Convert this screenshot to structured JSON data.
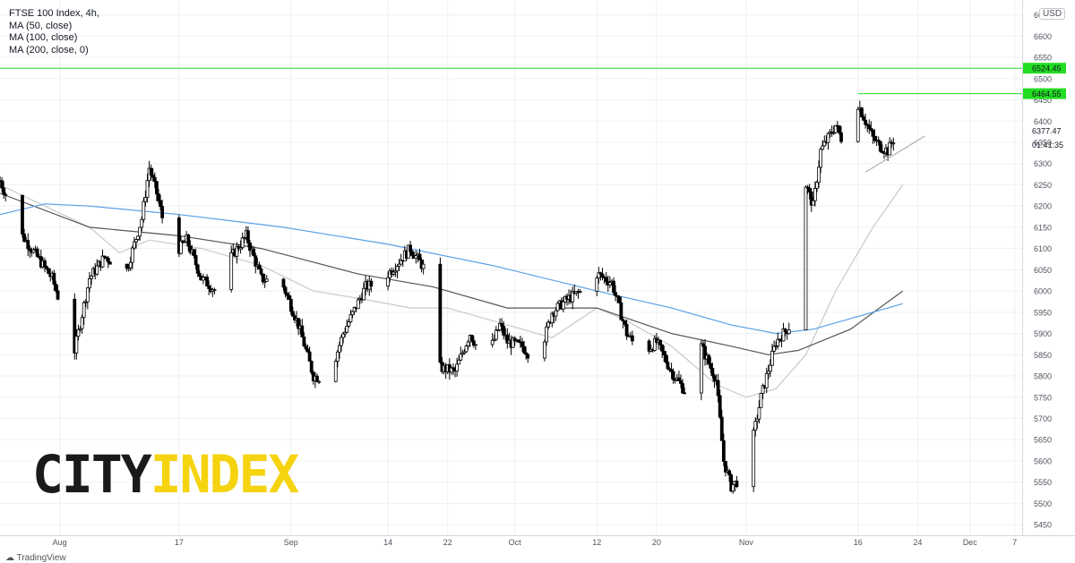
{
  "legend": {
    "title": "FTSE 100 Index, 4h,",
    "ma50": "MA (50, close)",
    "ma100": "MA (100, close)",
    "ma200": "MA (200, close, 0)"
  },
  "currency": "USD",
  "logo": {
    "part1": "CITY",
    "part2": "INDEX"
  },
  "watermark": "TradingView",
  "colors": {
    "up": "#ffffff",
    "down": "#000000",
    "candle_border": "#000000",
    "ma50": "#c9c9c9",
    "ma100": "#555555",
    "ma200": "#5aa0e6",
    "level": "#22dd22",
    "trend": "#b0b0b0",
    "logo_city": "#1a1a1a",
    "logo_index": "#f5d30f"
  },
  "chart_data": {
    "type": "candlestick",
    "title": "FTSE 100 Index, 4h,",
    "ylim": [
      5425,
      6685
    ],
    "xlim": [
      "2020-07-24",
      "2020-12-08"
    ],
    "y_ticks": [
      5450,
      5500,
      5550,
      5600,
      5650,
      5700,
      5750,
      5800,
      5850,
      5900,
      5950,
      6000,
      6050,
      6100,
      6150,
      6200,
      6250,
      6300,
      6350,
      6400,
      6450,
      6500,
      6550,
      6600,
      6650
    ],
    "x_ticks": [
      {
        "label": "Aug",
        "date": "2020-08-01"
      },
      {
        "label": "17",
        "date": "2020-08-17"
      },
      {
        "label": "Sep",
        "date": "2020-09-01"
      },
      {
        "label": "14",
        "date": "2020-09-14"
      },
      {
        "label": "22",
        "date": "2020-09-22"
      },
      {
        "label": "Oct",
        "date": "2020-10-01"
      },
      {
        "label": "12",
        "date": "2020-10-12"
      },
      {
        "label": "20",
        "date": "2020-10-20"
      },
      {
        "label": "Nov",
        "date": "2020-11-01"
      },
      {
        "label": "16",
        "date": "2020-11-16"
      },
      {
        "label": "24",
        "date": "2020-11-24"
      },
      {
        "label": "Dec",
        "date": "2020-12-01"
      },
      {
        "label": "7",
        "date": "2020-12-07"
      }
    ],
    "price_labels": [
      {
        "text": "6524.45",
        "value": 6524.45,
        "style": "level"
      },
      {
        "text": "6464.55",
        "value": 6464.55,
        "style": "level"
      },
      {
        "text": "6377.47",
        "value": 6377.47,
        "style": "plain"
      },
      {
        "text": "01:41:35",
        "value": 6345,
        "style": "plain"
      }
    ],
    "levels": [
      {
        "value": 6524.45,
        "from": "2020-07-24"
      },
      {
        "value": 6464.55,
        "from": "2020-11-16"
      }
    ],
    "trendline": {
      "from": [
        "2020-11-17",
        6280
      ],
      "to": [
        "2020-11-25",
        6365
      ]
    },
    "price_path": [
      [
        "2020-07-24",
        6260
      ],
      [
        "2020-07-27",
        6130
      ],
      [
        "2020-07-31",
        6030
      ],
      [
        "2020-08-03",
        5860
      ],
      [
        "2020-08-05",
        6030
      ],
      [
        "2020-08-07",
        6080
      ],
      [
        "2020-08-10",
        6050
      ],
      [
        "2020-08-12",
        6170
      ],
      [
        "2020-08-13",
        6290
      ],
      [
        "2020-08-14",
        6230
      ],
      [
        "2020-08-16",
        6080
      ],
      [
        "2020-08-18",
        6120
      ],
      [
        "2020-08-20",
        6030
      ],
      [
        "2020-08-22",
        6000
      ],
      [
        "2020-08-24",
        6080
      ],
      [
        "2020-08-26",
        6130
      ],
      [
        "2020-08-28",
        6030
      ],
      [
        "2020-08-31",
        6010
      ],
      [
        "2020-09-02",
        5920
      ],
      [
        "2020-09-04",
        5800
      ],
      [
        "2020-09-06",
        5790
      ],
      [
        "2020-09-08",
        5900
      ],
      [
        "2020-09-11",
        6010
      ],
      [
        "2020-09-13",
        6020
      ],
      [
        "2020-09-15",
        6060
      ],
      [
        "2020-09-17",
        6100
      ],
      [
        "2020-09-19",
        6050
      ],
      [
        "2020-09-21",
        5820
      ],
      [
        "2020-09-23",
        5810
      ],
      [
        "2020-09-25",
        5900
      ],
      [
        "2020-09-27",
        5830
      ],
      [
        "2020-09-29",
        5920
      ],
      [
        "2020-09-30",
        5880
      ],
      [
        "2020-10-02",
        5870
      ],
      [
        "2020-10-04",
        5830
      ],
      [
        "2020-10-06",
        5950
      ],
      [
        "2020-10-08",
        5980
      ],
      [
        "2020-10-10",
        6000
      ],
      [
        "2020-10-12",
        6040
      ],
      [
        "2020-10-14",
        6020
      ],
      [
        "2020-10-16",
        5900
      ],
      [
        "2020-10-18",
        5850
      ],
      [
        "2020-10-20",
        5880
      ],
      [
        "2020-10-22",
        5810
      ],
      [
        "2020-10-24",
        5760
      ],
      [
        "2020-10-26",
        5870
      ],
      [
        "2020-10-28",
        5790
      ],
      [
        "2020-10-29",
        5600
      ],
      [
        "2020-10-30",
        5540
      ],
      [
        "2020-11-01",
        5570
      ],
      [
        "2020-11-03",
        5750
      ],
      [
        "2020-11-05",
        5880
      ],
      [
        "2020-11-07",
        5920
      ],
      [
        "2020-11-09",
        6250
      ],
      [
        "2020-11-10",
        6200
      ],
      [
        "2020-11-11",
        6330
      ],
      [
        "2020-11-13",
        6390
      ],
      [
        "2020-11-14",
        6350
      ],
      [
        "2020-11-16",
        6440
      ],
      [
        "2020-11-17",
        6400
      ],
      [
        "2020-11-18",
        6360
      ],
      [
        "2020-11-19",
        6340
      ],
      [
        "2020-11-20",
        6330
      ],
      [
        "2020-11-21",
        6365
      ],
      [
        "2020-11-22",
        6377
      ]
    ],
    "series": [
      {
        "name": "MA (50, close)",
        "points": [
          [
            "2020-07-24",
            6250
          ],
          [
            "2020-08-05",
            6150
          ],
          [
            "2020-08-09",
            6090
          ],
          [
            "2020-08-13",
            6120
          ],
          [
            "2020-08-20",
            6100
          ],
          [
            "2020-08-28",
            6060
          ],
          [
            "2020-09-04",
            6000
          ],
          [
            "2020-09-11",
            5980
          ],
          [
            "2020-09-17",
            5960
          ],
          [
            "2020-09-22",
            5960
          ],
          [
            "2020-09-28",
            5930
          ],
          [
            "2020-10-06",
            5890
          ],
          [
            "2020-10-12",
            5960
          ],
          [
            "2020-10-16",
            5930
          ],
          [
            "2020-10-22",
            5870
          ],
          [
            "2020-10-28",
            5780
          ],
          [
            "2020-11-01",
            5750
          ],
          [
            "2020-11-05",
            5770
          ],
          [
            "2020-11-09",
            5850
          ],
          [
            "2020-11-13",
            6000
          ],
          [
            "2020-11-18",
            6150
          ],
          [
            "2020-11-22",
            6250
          ]
        ]
      },
      {
        "name": "MA (100, close)",
        "points": [
          [
            "2020-07-24",
            6230
          ],
          [
            "2020-08-05",
            6150
          ],
          [
            "2020-08-17",
            6130
          ],
          [
            "2020-08-28",
            6100
          ],
          [
            "2020-09-10",
            6040
          ],
          [
            "2020-09-20",
            6010
          ],
          [
            "2020-09-30",
            5960
          ],
          [
            "2020-10-12",
            5960
          ],
          [
            "2020-10-22",
            5900
          ],
          [
            "2020-10-30",
            5870
          ],
          [
            "2020-11-04",
            5850
          ],
          [
            "2020-11-08",
            5860
          ],
          [
            "2020-11-15",
            5910
          ],
          [
            "2020-11-22",
            6000
          ]
        ]
      },
      {
        "name": "MA (200, close, 0)",
        "points": [
          [
            "2020-07-24",
            6180
          ],
          [
            "2020-07-30",
            6205
          ],
          [
            "2020-08-05",
            6200
          ],
          [
            "2020-08-17",
            6180
          ],
          [
            "2020-08-31",
            6150
          ],
          [
            "2020-09-14",
            6110
          ],
          [
            "2020-09-28",
            6060
          ],
          [
            "2020-10-12",
            6000
          ],
          [
            "2020-10-22",
            5960
          ],
          [
            "2020-10-30",
            5920
          ],
          [
            "2020-11-05",
            5900
          ],
          [
            "2020-11-10",
            5910
          ],
          [
            "2020-11-16",
            5940
          ],
          [
            "2020-11-22",
            5970
          ]
        ]
      }
    ]
  }
}
